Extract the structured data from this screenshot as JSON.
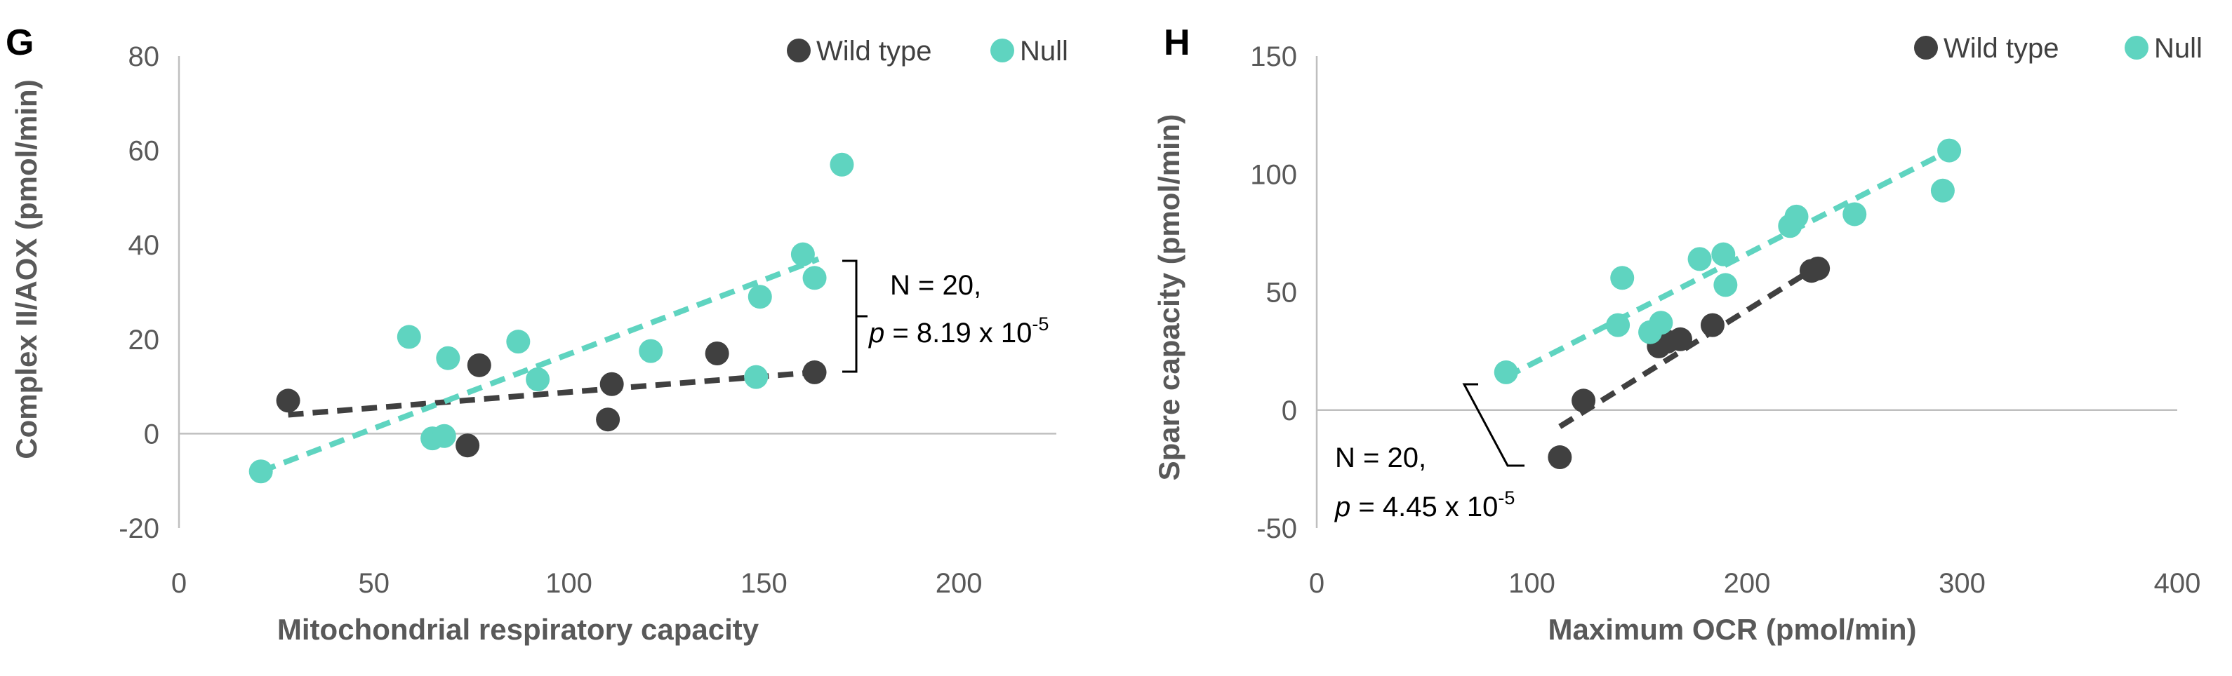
{
  "colors": {
    "wild_type": "#404040",
    "null": "#5fd4c0",
    "axis": "#bfbfbf",
    "text": "#595959"
  },
  "chart_data": [
    {
      "type": "scatter",
      "panel_label": "G",
      "xlabel": "Mitochondrial respiratory capacity",
      "ylabel": "Complex II/AOX (pmol/min)",
      "xlim": [
        0,
        225
      ],
      "ylim": [
        -20,
        80
      ],
      "xticks": [
        0,
        50,
        100,
        150,
        200
      ],
      "yticks": [
        -20,
        0,
        20,
        40,
        60,
        80
      ],
      "legend_position": "top-right",
      "series": [
        {
          "name": "Wild type",
          "color": "#404040",
          "points": [
            [
              28,
              7
            ],
            [
              74,
              -2.5
            ],
            [
              77,
              14.5
            ],
            [
              110,
              3
            ],
            [
              111,
              10.5
            ],
            [
              138,
              17
            ],
            [
              163,
              13
            ]
          ],
          "trendline": [
            [
              28,
              4
            ],
            [
              163,
              13
            ]
          ]
        },
        {
          "name": "Null",
          "color": "#5fd4c0",
          "points": [
            [
              21,
              -8
            ],
            [
              59,
              20.5
            ],
            [
              65,
              -1
            ],
            [
              68,
              -0.5
            ],
            [
              69,
              16
            ],
            [
              87,
              19.5
            ],
            [
              92,
              11.5
            ],
            [
              121,
              17.5
            ],
            [
              148,
              12
            ],
            [
              149,
              29
            ],
            [
              160,
              38
            ],
            [
              163,
              33
            ],
            [
              170,
              57
            ]
          ],
          "trendline": [
            [
              21,
              -8
            ],
            [
              164,
              37
            ]
          ]
        }
      ],
      "annotation": {
        "n_text": "N = 20,",
        "p_symbol": "p",
        "p_text": " = 8.19 x 10",
        "p_exp": "-5"
      }
    },
    {
      "type": "scatter",
      "panel_label": "H",
      "xlabel": "Maximum OCR (pmol/min)",
      "ylabel": "Spare capacity (pmol/min)",
      "xlim": [
        0,
        400
      ],
      "ylim": [
        -50,
        150
      ],
      "xticks": [
        0,
        100,
        200,
        300,
        400
      ],
      "yticks": [
        -50,
        0,
        50,
        100,
        150
      ],
      "legend_position": "top-right",
      "series": [
        {
          "name": "Wild type",
          "color": "#404040",
          "points": [
            [
              113,
              -20
            ],
            [
              124,
              4
            ],
            [
              159,
              27
            ],
            [
              163,
              29
            ],
            [
              169,
              30
            ],
            [
              184,
              36
            ],
            [
              230,
              59
            ],
            [
              233,
              60
            ]
          ],
          "trendline": [
            [
              113,
              -7
            ],
            [
              233,
              61
            ]
          ]
        },
        {
          "name": "Null",
          "color": "#5fd4c0",
          "points": [
            [
              88,
              16
            ],
            [
              140,
              36
            ],
            [
              142,
              56
            ],
            [
              155,
              33
            ],
            [
              160,
              37
            ],
            [
              178,
              64
            ],
            [
              189,
              66
            ],
            [
              190,
              53
            ],
            [
              220,
              78
            ],
            [
              223,
              82
            ],
            [
              250,
              83
            ],
            [
              291,
              93
            ],
            [
              294,
              110
            ]
          ],
          "trendline": [
            [
              88,
              14
            ],
            [
              292,
              109
            ]
          ]
        }
      ],
      "annotation": {
        "n_text": "N = 20,",
        "p_symbol": "p",
        "p_text": " = 4.45 x 10",
        "p_exp": "-5"
      }
    }
  ]
}
